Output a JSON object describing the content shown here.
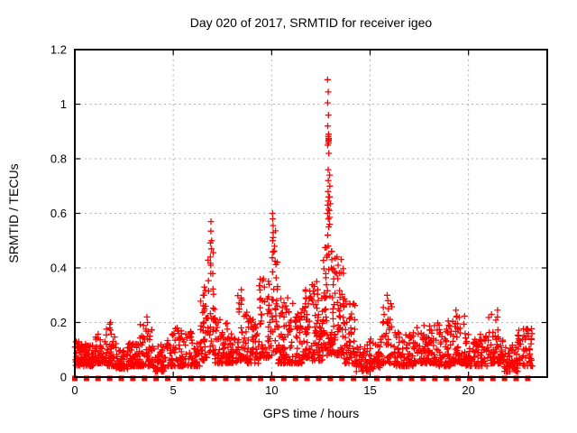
{
  "chart_data": {
    "type": "scatter",
    "title": "Day 020 of 2017, SRMTID for receiver igeo",
    "xlabel": "GPS time / hours",
    "ylabel": "SRMTID / TECUs",
    "xlim": [
      0,
      24
    ],
    "ylim": [
      0,
      1.2
    ],
    "xtick_values": [
      0,
      5,
      10,
      15,
      20
    ],
    "xtick_labels": [
      "0",
      "5",
      "10",
      "15",
      "20"
    ],
    "ytick_values": [
      0,
      0.2,
      0.4,
      0.6,
      0.8,
      1,
      1.2
    ],
    "ytick_labels": [
      "0",
      "0.2",
      "0.4",
      "0.6",
      "0.8",
      "1",
      "1.2"
    ],
    "grid": true,
    "legend": "none",
    "marker": "plus",
    "marker_color": "#ff0000",
    "grid_color": "#b0b0b0",
    "axis_color": "#000000",
    "background_color": "#ffffff",
    "seed": 20170020,
    "series": [
      {
        "name": "srmtid-noise-bands",
        "note": "dense scatter approximated by bands [t_start, t_end, n_points, y_min, y_max, low_bias_exponent]",
        "clusters": [
          [
            0.0,
            0.55,
            55,
            0.04,
            0.13,
            1.8
          ],
          [
            0.55,
            1.05,
            50,
            0.04,
            0.12,
            1.8
          ],
          [
            1.05,
            1.6,
            50,
            0.05,
            0.16,
            2.2
          ],
          [
            1.6,
            2.1,
            48,
            0.04,
            0.2,
            2.4
          ],
          [
            2.1,
            2.7,
            55,
            0.03,
            0.11,
            1.8
          ],
          [
            2.7,
            3.3,
            55,
            0.04,
            0.13,
            2.0
          ],
          [
            3.3,
            4.0,
            60,
            0.04,
            0.21,
            2.6
          ],
          [
            4.0,
            4.65,
            50,
            0.02,
            0.12,
            1.8
          ],
          [
            4.65,
            5.45,
            60,
            0.04,
            0.18,
            2.4
          ],
          [
            5.45,
            6.35,
            65,
            0.04,
            0.17,
            2.2
          ],
          [
            6.35,
            6.75,
            40,
            0.06,
            0.33,
            2.0
          ],
          [
            6.75,
            7.1,
            32,
            0.09,
            0.5,
            1.7
          ],
          [
            7.1,
            7.75,
            55,
            0.05,
            0.22,
            2.2
          ],
          [
            7.75,
            8.2,
            42,
            0.05,
            0.16,
            2.0
          ],
          [
            8.2,
            8.75,
            50,
            0.06,
            0.32,
            2.2
          ],
          [
            8.75,
            9.35,
            52,
            0.05,
            0.22,
            2.0
          ],
          [
            9.35,
            9.95,
            58,
            0.07,
            0.36,
            2.0
          ],
          [
            9.95,
            10.3,
            38,
            0.08,
            0.55,
            1.8
          ],
          [
            10.3,
            11.1,
            80,
            0.05,
            0.3,
            2.3
          ],
          [
            11.1,
            11.55,
            48,
            0.05,
            0.25,
            2.2
          ],
          [
            11.55,
            12.05,
            52,
            0.07,
            0.33,
            2.2
          ],
          [
            12.05,
            12.6,
            65,
            0.06,
            0.35,
            2.2
          ],
          [
            12.6,
            13.15,
            68,
            0.08,
            0.48,
            1.8
          ],
          [
            13.15,
            13.7,
            58,
            0.08,
            0.44,
            2.0
          ],
          [
            13.7,
            14.3,
            52,
            0.05,
            0.28,
            2.2
          ],
          [
            14.3,
            14.95,
            40,
            0.02,
            0.12,
            1.8
          ],
          [
            14.95,
            15.55,
            55,
            0.03,
            0.14,
            2.0
          ],
          [
            15.55,
            16.15,
            45,
            0.05,
            0.3,
            2.4
          ],
          [
            16.15,
            17.3,
            85,
            0.04,
            0.17,
            2.2
          ],
          [
            17.3,
            18.3,
            80,
            0.05,
            0.19,
            2.2
          ],
          [
            18.3,
            19.2,
            70,
            0.04,
            0.21,
            2.2
          ],
          [
            19.2,
            19.8,
            50,
            0.05,
            0.25,
            2.4
          ],
          [
            19.8,
            21.0,
            90,
            0.04,
            0.16,
            2.0
          ],
          [
            21.0,
            21.8,
            62,
            0.05,
            0.23,
            2.4
          ],
          [
            21.8,
            22.5,
            50,
            0.02,
            0.12,
            1.8
          ],
          [
            22.5,
            23.25,
            58,
            0.04,
            0.18,
            1.7
          ]
        ]
      },
      {
        "name": "srmtid-spike-columns",
        "note": "explicit tall spike points read from the plot",
        "columns": [
          {
            "t": 1.8,
            "values": [
              0.18,
              0.2
            ]
          },
          {
            "t": 3.7,
            "values": [
              0.2,
              0.22
            ]
          },
          {
            "t": 5.2,
            "values": [
              0.17,
              0.18
            ]
          },
          {
            "t": 6.55,
            "values": [
              0.3,
              0.33
            ]
          },
          {
            "t": 6.92,
            "values": [
              0.38,
              0.41,
              0.44,
              0.47,
              0.5,
              0.535,
              0.57
            ]
          },
          {
            "t": 8.45,
            "values": [
              0.29,
              0.32
            ]
          },
          {
            "t": 9.6,
            "values": [
              0.33,
              0.36
            ]
          },
          {
            "t": 10.05,
            "values": [
              0.46,
              0.5,
              0.53,
              0.555,
              0.58,
              0.6
            ]
          },
          {
            "t": 11.7,
            "values": [
              0.29,
              0.32
            ]
          },
          {
            "t": 12.3,
            "values": [
              0.32,
              0.35
            ]
          },
          {
            "t": 12.87,
            "values": [
              0.45,
              0.48,
              0.52,
              0.55,
              0.58,
              0.6,
              0.615,
              0.63,
              0.645,
              0.66,
              0.68,
              0.72,
              0.76,
              0.82,
              0.85,
              0.858,
              0.865,
              0.87,
              0.875,
              0.882,
              0.89,
              0.92,
              0.96,
              1.005,
              1.045,
              1.09
            ]
          },
          {
            "t": 12.97,
            "values": [
              0.56,
              0.585,
              0.61,
              0.635,
              0.66,
              0.7,
              0.74
            ]
          },
          {
            "t": 13.07,
            "values": [
              0.4,
              0.43,
              0.46
            ]
          },
          {
            "t": 13.35,
            "values": [
              0.38,
              0.41,
              0.44
            ]
          },
          {
            "t": 15.9,
            "values": [
              0.25,
              0.28,
              0.3
            ]
          },
          {
            "t": 19.4,
            "values": [
              0.22,
              0.245
            ]
          },
          {
            "t": 21.45,
            "values": [
              0.22,
              0.245
            ]
          },
          {
            "t": 23.0,
            "values": [
              0.15,
              0.17
            ]
          }
        ]
      },
      {
        "name": "zero-line-squares",
        "note": "filled red squares at y=0, evenly spaced",
        "marker": "filled-square",
        "y": 0,
        "t_start": 0,
        "t_end": 23.01,
        "t_step": 0.59
      }
    ]
  }
}
